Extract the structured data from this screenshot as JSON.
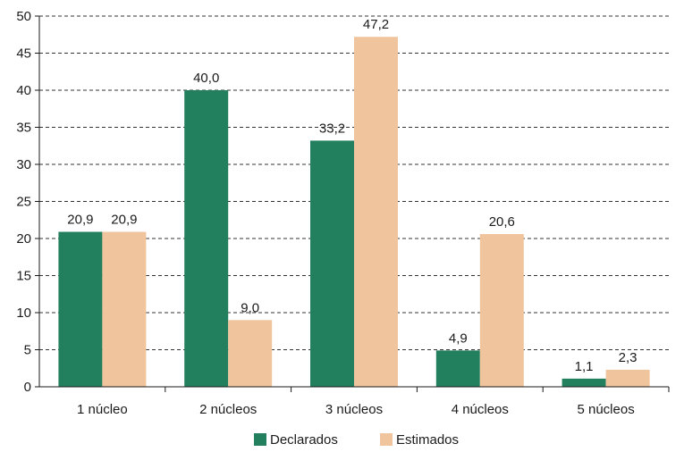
{
  "chart_data": {
    "type": "bar",
    "categories": [
      "1 núcleo",
      "2 núcleos",
      "3 núcleos",
      "4 núcleos",
      "5 núcleos"
    ],
    "series": [
      {
        "name": "Declarados",
        "values": [
          20.9,
          40.0,
          33.2,
          4.9,
          1.1
        ],
        "labels": [
          "20,9",
          "40,0",
          "33,2",
          "4,9",
          "1,1"
        ],
        "color": "#23805f"
      },
      {
        "name": "Estimados",
        "values": [
          20.9,
          9.0,
          47.2,
          20.6,
          2.3
        ],
        "labels": [
          "20,9",
          "9,0",
          "47,2",
          "20,6",
          "2,3"
        ],
        "color": "#f0c49c"
      }
    ],
    "ylim": [
      0,
      50
    ],
    "yticks": [
      0,
      5,
      10,
      15,
      20,
      25,
      30,
      35,
      40,
      45,
      50
    ],
    "grid": true,
    "grid_style": "dashed",
    "legend_position": "bottom-center"
  }
}
